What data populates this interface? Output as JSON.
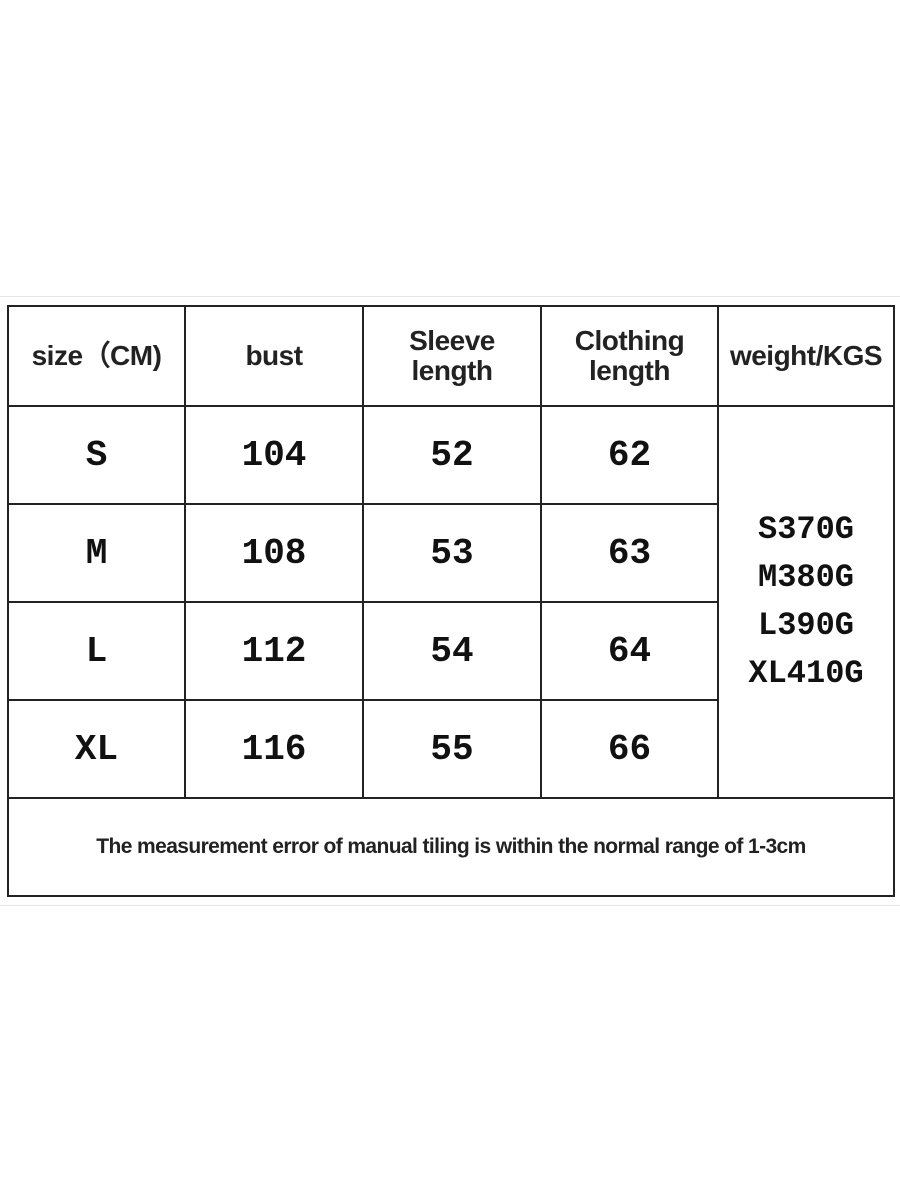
{
  "table": {
    "headers": [
      "size（CM)",
      "bust",
      "Sleeve length",
      "Clothing length",
      "weight/KGS"
    ],
    "rows": [
      {
        "size": "S",
        "bust": "104",
        "sleeve": "52",
        "clothing": "62"
      },
      {
        "size": "M",
        "bust": "108",
        "sleeve": "53",
        "clothing": "63"
      },
      {
        "size": "L",
        "bust": "112",
        "sleeve": "54",
        "clothing": "64"
      },
      {
        "size": "XL",
        "bust": "116",
        "sleeve": "55",
        "clothing": "66"
      }
    ],
    "weights": [
      "S370G",
      "M380G",
      "L390G",
      "XL410G"
    ],
    "note": "The measurement error of manual tiling is within the normal range of 1-3cm"
  },
  "colors": {
    "highlight_size": "#e11b1b",
    "border": "#222222"
  }
}
